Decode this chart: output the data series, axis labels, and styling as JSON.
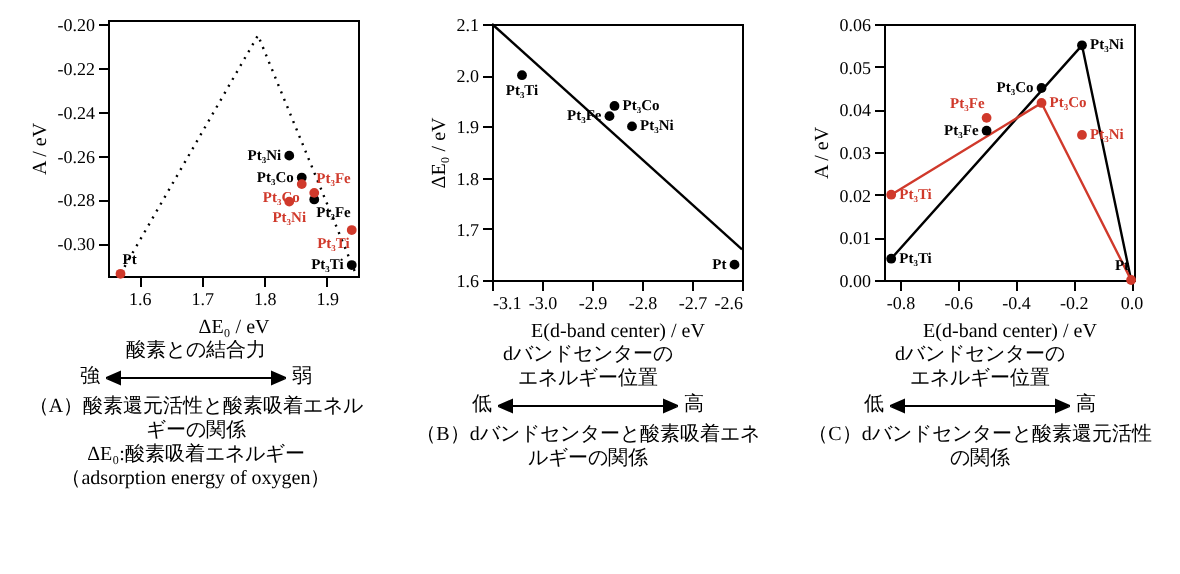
{
  "chart_data": [
    {
      "type": "scatter",
      "xlabel": "ΔE₀ / eV",
      "ylabel": "A / eV",
      "xlim": [
        1.55,
        1.95
      ],
      "ylim": [
        -0.315,
        -0.198
      ],
      "xticks": [
        1.6,
        1.7,
        1.8,
        1.9
      ],
      "yticks": [
        {
          "value": -0.2,
          "label": "-0.20"
        },
        -0.22,
        -0.24,
        -0.26,
        -0.28,
        {
          "value": -0.3,
          "label": "-0.30"
        }
      ],
      "marker": "circle",
      "grid": false,
      "series": [
        {
          "type": "line",
          "marker": "none",
          "color": "#000000",
          "line_style": "dotted",
          "x": [
            1.57,
            1.79,
            1.945
          ],
          "values": [
            -0.314,
            -0.205,
            -0.313
          ]
        },
        {
          "color": "#000000",
          "x": [
            1.84,
            1.86,
            1.88,
            1.94
          ],
          "values": [
            -0.26,
            -0.27,
            -0.28,
            -0.31
          ]
        },
        {
          "color": "#d0392b",
          "x": [
            1.57,
            1.86,
            1.88,
            1.84,
            1.94
          ],
          "values": [
            -0.314,
            -0.273,
            -0.277,
            -0.281,
            -0.294
          ]
        }
      ],
      "annotations": [
        "酸素との結合力",
        "強",
        "弱",
        "（A）酸素還元活性と酸素吸着エネルギーの関係",
        "ΔE₀:酸素吸着エネルギー",
        "（adsorption energy of oxygen）",
        {
          "text": "Pt₃Ni",
          "x": 1.84,
          "y": -0.26
        },
        {
          "text": "Pt₃Co",
          "x": 1.86,
          "y": -0.27
        },
        {
          "text": "Pt₃Fe",
          "x": 1.88,
          "y": -0.28
        },
        {
          "text": "Pt₃Ti",
          "x": 1.94,
          "y": -0.31
        },
        {
          "text": "Pt₃Co",
          "x": 1.86,
          "y": -0.273
        },
        {
          "text": "Pt₃Fe",
          "x": 1.88,
          "y": -0.277
        },
        {
          "text": "Pt₃Ni",
          "x": 1.84,
          "y": -0.281
        },
        {
          "text": "Pt₃Ti",
          "x": 1.94,
          "y": -0.294
        },
        {
          "text": "Pt",
          "x": 1.57,
          "y": -0.314
        }
      ]
    },
    {
      "type": "scatter",
      "xlabel": "E(d-band center) / eV",
      "ylabel": "ΔE₀ / eV",
      "xlim": [
        -3.1,
        -2.6
      ],
      "ylim": [
        1.6,
        2.1
      ],
      "xticks": [
        -3.1,
        {
          "value": -3,
          "label": "-3.0"
        },
        -2.9,
        -2.8,
        -2.7,
        -2.6
      ],
      "yticks": [
        1.6,
        1.7,
        1.8,
        1.9,
        {
          "value": 2,
          "label": "2.0"
        },
        2.1
      ],
      "marker": "circle",
      "grid": false,
      "series": [
        {
          "type": "line",
          "marker": "none",
          "color": "#000000",
          "line_style": "solid",
          "x": [
            -3.1,
            -2.6
          ],
          "values": [
            2.1,
            1.66
          ]
        },
        {
          "color": "#000000",
          "x": [
            -3.04,
            -2.855,
            -2.865,
            -2.82,
            -2.615
          ],
          "values": [
            2.0,
            1.94,
            1.92,
            1.9,
            1.63
          ]
        }
      ],
      "annotations": [
        "dバンドセンターのエネルギー位置",
        "低",
        "高",
        "（B）dバンドセンターと酸素吸着エネルギーの関係",
        {
          "text": "Pt₃Ti",
          "x": -3.04,
          "y": 2.0
        },
        {
          "text": "Pt₃Co",
          "x": -2.855,
          "y": 1.94
        },
        {
          "text": "Pt₃Fe",
          "x": -2.865,
          "y": 1.92
        },
        {
          "text": "Pt₃Ni",
          "x": -2.82,
          "y": 1.9
        },
        {
          "text": "Pt",
          "x": -2.615,
          "y": 1.63
        }
      ]
    },
    {
      "type": "scatter",
      "xlabel": "E(d-band center) / eV",
      "ylabel": "A / eV",
      "xlim": [
        -0.855,
        0.01
      ],
      "ylim": [
        0,
        0.06
      ],
      "xticks": [
        -0.8,
        -0.6,
        -0.4,
        -0.2,
        {
          "value": 0,
          "label": "0.0"
        }
      ],
      "yticks": [
        {
          "value": 0,
          "label": "0.00"
        },
        0.01,
        0.02,
        0.03,
        0.04,
        0.05,
        0.06
      ],
      "marker": "circle",
      "grid": false,
      "series": [
        {
          "type": "line",
          "marker": "none",
          "color": "#000000",
          "line_style": "solid",
          "x": [
            -0.83,
            -0.17,
            0
          ],
          "values": [
            0.005,
            0.055,
            0
          ]
        },
        {
          "type": "line",
          "marker": "none",
          "color": "#d0392b",
          "line_style": "solid",
          "x": [
            -0.83,
            -0.31,
            0
          ],
          "values": [
            0.02,
            0.0415,
            0
          ]
        },
        {
          "color": "#000000",
          "x": [
            -0.83,
            -0.5,
            -0.31,
            -0.17
          ],
          "values": [
            0.005,
            0.035,
            0.045,
            0.055
          ]
        },
        {
          "color": "#d0392b",
          "x": [
            -0.83,
            -0.5,
            -0.31,
            -0.17,
            0
          ],
          "values": [
            0.02,
            0.038,
            0.0415,
            0.034,
            0
          ]
        }
      ],
      "annotations": [
        "dバンドセンターのエネルギー位置",
        "低",
        "高",
        "（C）dバンドセンターと酸素還元活性の関係",
        {
          "text": "Pt₃Ni",
          "x": -0.17,
          "y": 0.055
        },
        {
          "text": "Pt₃Co",
          "x": -0.31,
          "y": 0.045
        },
        {
          "text": "Pt₃Fe",
          "x": -0.5,
          "y": 0.035
        },
        {
          "text": "Pt₃Ti",
          "x": -0.83,
          "y": 0.005
        },
        {
          "text": "Pt",
          "x": 0,
          "y": 0
        },
        {
          "text": "Pt₃Fe",
          "x": -0.5,
          "y": 0.038
        },
        {
          "text": "Pt₃Co",
          "x": -0.31,
          "y": 0.0415
        },
        {
          "text": "Pt₃Ti",
          "x": -0.83,
          "y": 0.02
        },
        {
          "text": "Pt₃Ni",
          "x": -0.17,
          "y": 0.034
        }
      ]
    }
  ]
}
